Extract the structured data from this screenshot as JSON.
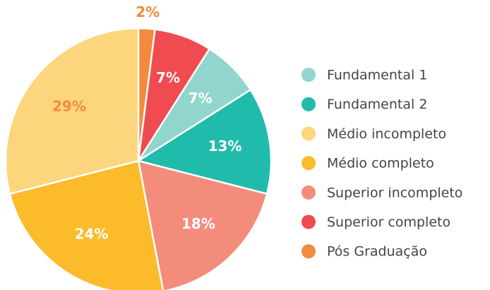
{
  "chart_data": {
    "type": "pie",
    "values": [
      2,
      7,
      7,
      13,
      18,
      24,
      29
    ],
    "value_labels": [
      "2%",
      "7%",
      "7%",
      "13%",
      "18%",
      "24%",
      "29%"
    ],
    "colors": [
      "#f38b3c",
      "#ef4b50",
      "#92d5cc",
      "#20bbab",
      "#f48c7c",
      "#fbbb2a",
      "#fdd57c"
    ],
    "label_colors": [
      "#f38b3c",
      "#ffffff",
      "#ffffff",
      "#ffffff",
      "#ffffff",
      "#ffffff",
      "#f38b3c"
    ],
    "legend": [
      {
        "name": "Fundamental 1",
        "color": "#92d5cc"
      },
      {
        "name": "Fundamental 2",
        "color": "#20bbab"
      },
      {
        "name": "Médio incompleto",
        "color": "#fdd57c"
      },
      {
        "name": "Médio completo",
        "color": "#fbbb2a"
      },
      {
        "name": "Superior incompleto",
        "color": "#f48c7c"
      },
      {
        "name": "Superior completo",
        "color": "#ef4b50"
      },
      {
        "name": "Pós Graduação",
        "color": "#f38b3c"
      }
    ]
  }
}
